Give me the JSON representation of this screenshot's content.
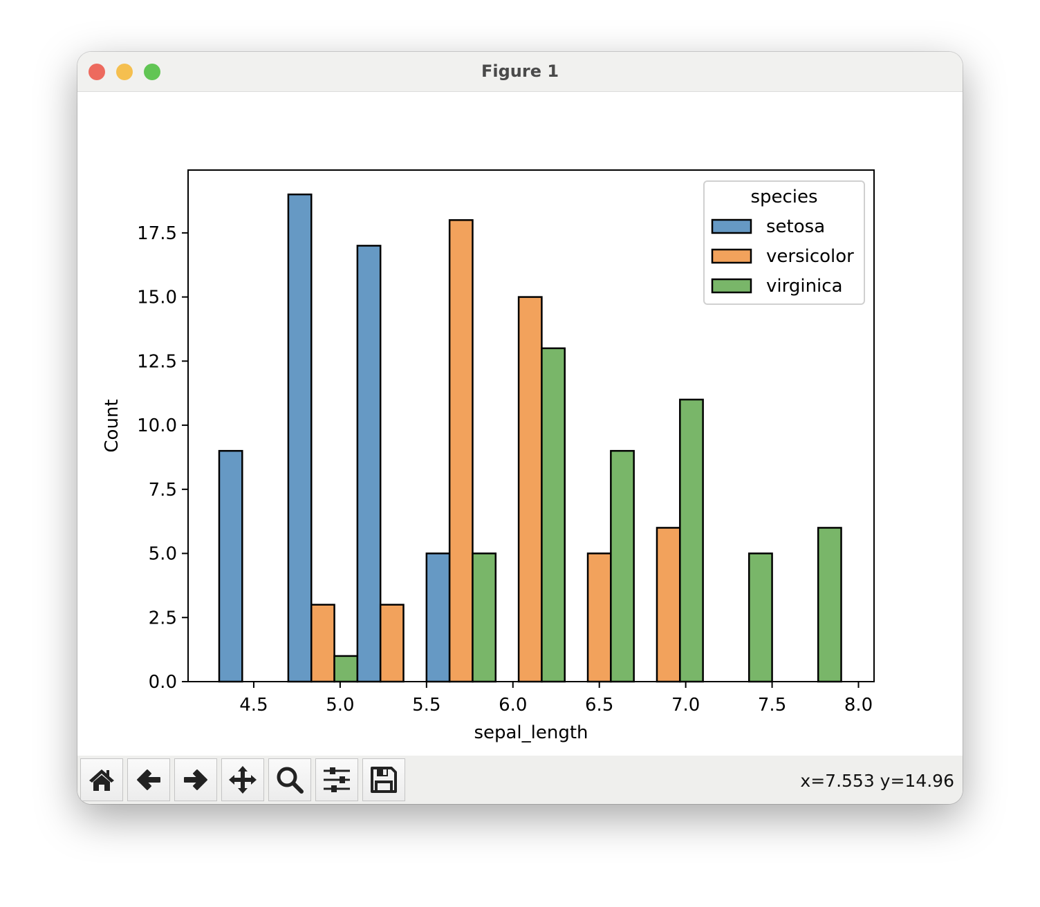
{
  "window": {
    "title": "Figure 1"
  },
  "toolbar": {
    "buttons": [
      {
        "name": "home-button",
        "icon": "home-icon"
      },
      {
        "name": "back-button",
        "icon": "arrow-left-icon"
      },
      {
        "name": "forward-button",
        "icon": "arrow-right-icon"
      },
      {
        "name": "pan-button",
        "icon": "move-icon"
      },
      {
        "name": "zoom-button",
        "icon": "magnifier-icon"
      },
      {
        "name": "configure-subplots-button",
        "icon": "sliders-icon"
      },
      {
        "name": "save-button",
        "icon": "floppy-disk-icon"
      }
    ],
    "coords": "x=7.553 y=14.96"
  },
  "chart_data": {
    "type": "bar",
    "xlabel": "sepal_length",
    "ylabel": "Count",
    "bin_edges": [
      4.3,
      4.7,
      5.1,
      5.5,
      5.9,
      6.3,
      6.7,
      7.1,
      7.5,
      7.9
    ],
    "xlim": [
      4.12,
      8.09
    ],
    "ylim": [
      0,
      19.95
    ],
    "xticks": [
      "4.5",
      "5.0",
      "5.5",
      "6.0",
      "6.5",
      "7.0",
      "7.5",
      "8.0"
    ],
    "yticks": [
      "0.0",
      "2.5",
      "5.0",
      "7.5",
      "10.0",
      "12.5",
      "15.0",
      "17.5"
    ],
    "grid": false,
    "legend": {
      "title": "species",
      "placement": "upper right"
    },
    "series": [
      {
        "name": "setosa",
        "color": "#6699c4",
        "values": [
          9,
          19,
          17,
          5,
          0,
          0,
          0,
          0,
          0
        ]
      },
      {
        "name": "versicolor",
        "color": "#f2a25c",
        "values": [
          0,
          3,
          3,
          18,
          15,
          5,
          6,
          0,
          0
        ]
      },
      {
        "name": "virginica",
        "color": "#79b669",
        "values": [
          0,
          1,
          0,
          5,
          13,
          9,
          11,
          5,
          6
        ]
      }
    ]
  }
}
